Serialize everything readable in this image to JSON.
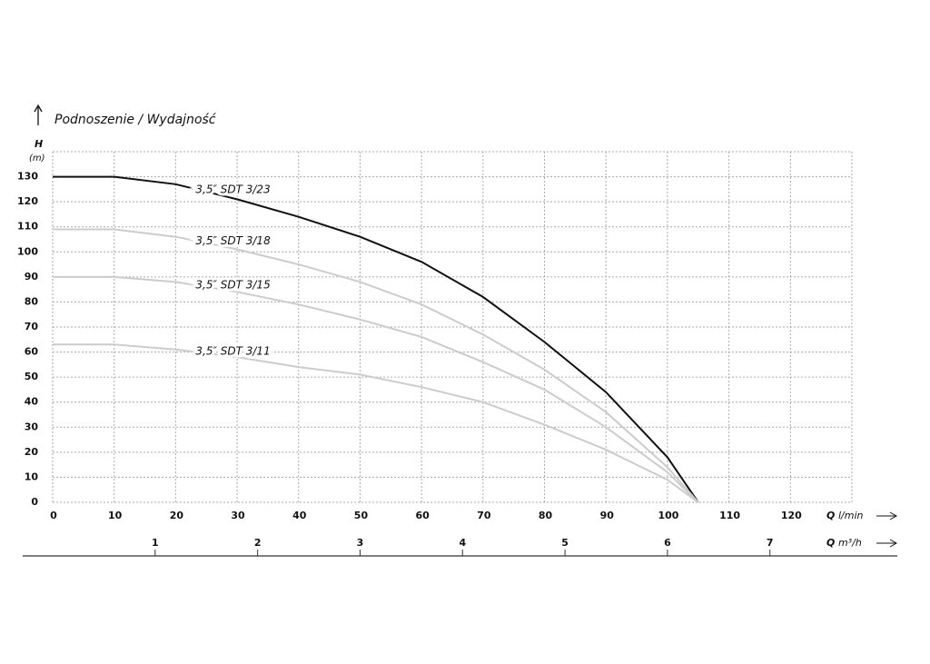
{
  "chart_data": {
    "type": "line",
    "title": "Podnoszenie / Wydajność",
    "y_label": {
      "symbol": "H",
      "unit": "(m)"
    },
    "x_label": {
      "symbol": "Q",
      "unit": "l/min"
    },
    "x2_label": {
      "symbol": "Q",
      "unit": "m³/h"
    },
    "xlim": [
      0,
      130
    ],
    "xticks": [
      0,
      10,
      20,
      30,
      40,
      50,
      60,
      70,
      80,
      90,
      100,
      110,
      120
    ],
    "x2lim": [
      0,
      7.8
    ],
    "x2ticks": [
      1,
      2,
      3,
      4,
      5,
      6,
      7
    ],
    "ylim": [
      0,
      140
    ],
    "yticks": [
      0,
      10,
      20,
      30,
      40,
      50,
      60,
      70,
      80,
      90,
      100,
      110,
      120,
      130
    ],
    "grid": true,
    "x": [
      0,
      10,
      20,
      30,
      40,
      50,
      60,
      70,
      80,
      90,
      100,
      105
    ],
    "series": [
      {
        "name": "3,5″ SDT 3/23",
        "color": "#111111",
        "values": [
          130,
          130,
          127,
          121,
          114,
          106,
          96,
          82,
          64,
          44,
          18,
          0
        ]
      },
      {
        "name": "3,5″ SDT 3/18",
        "color": "#cccccc",
        "values": [
          109,
          109,
          106,
          101,
          95,
          88,
          79,
          67,
          53,
          36,
          14,
          0
        ]
      },
      {
        "name": "3,5″ SDT 3/15",
        "color": "#cccccc",
        "values": [
          90,
          90,
          88,
          84,
          79,
          73,
          66,
          56,
          45,
          30,
          12,
          0
        ]
      },
      {
        "name": "3,5″ SDT 3/11",
        "color": "#cccccc",
        "values": [
          63,
          63,
          61,
          58,
          54,
          51,
          46,
          40,
          31,
          21,
          9,
          0
        ]
      }
    ]
  }
}
